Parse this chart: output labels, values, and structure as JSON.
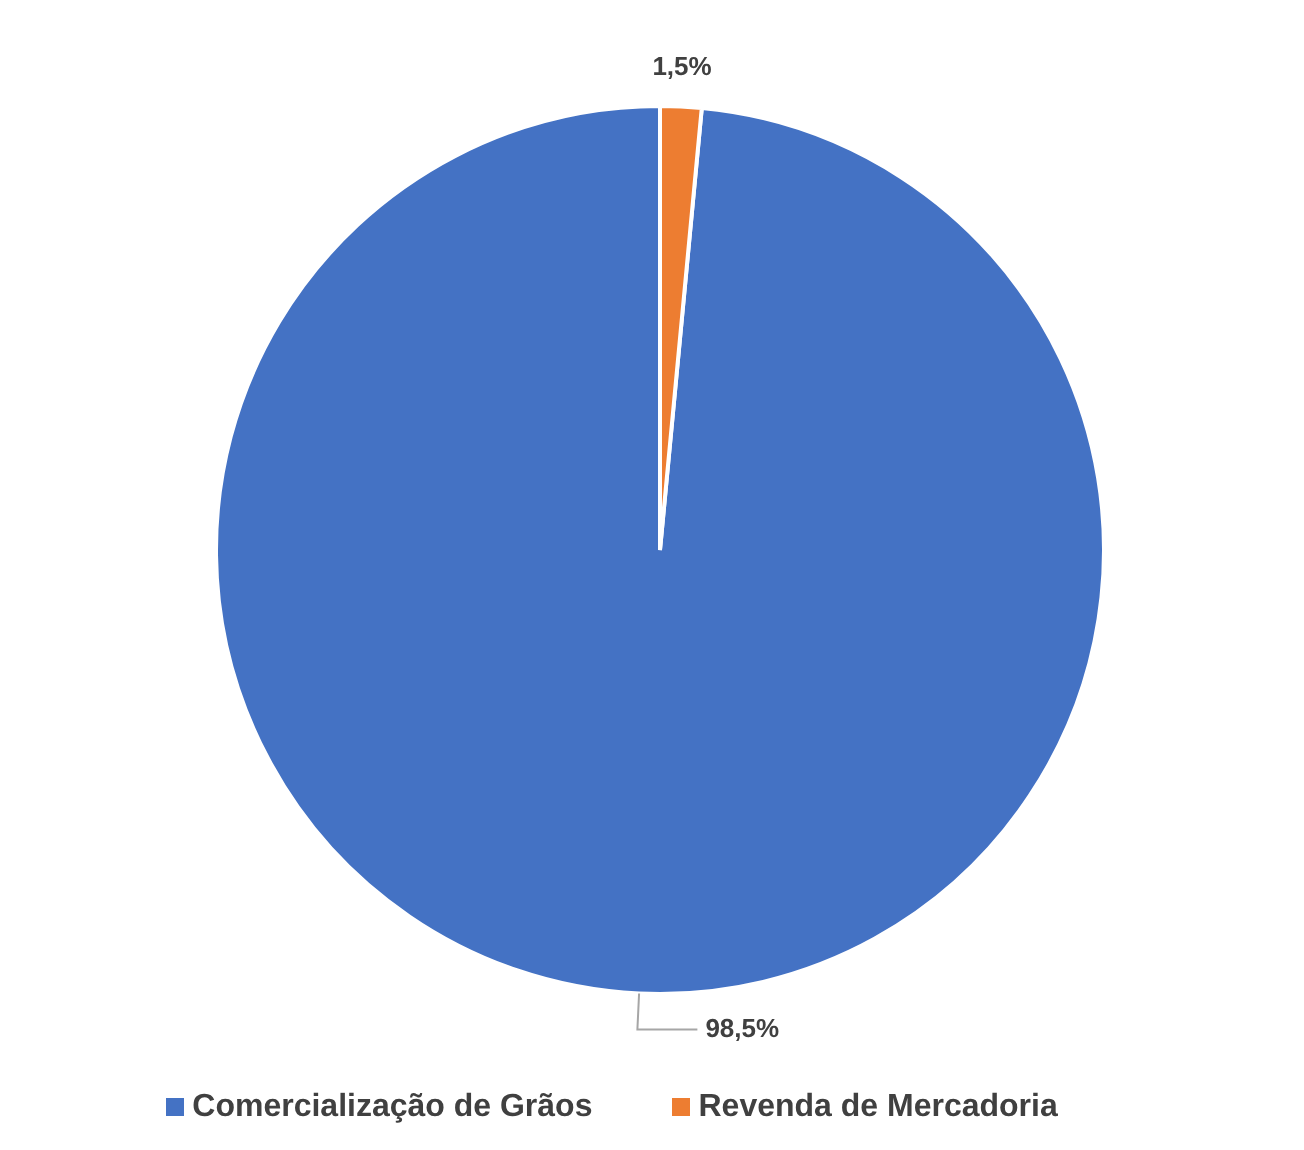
{
  "chart_data": {
    "type": "pie",
    "categories": [
      "Comercialização de Grãos",
      "Revenda de Mercadoria"
    ],
    "values": [
      98.5,
      1.5
    ],
    "colors": [
      "#4472c4",
      "#ed7d31"
    ],
    "value_labels": [
      "98,5%",
      "1,5%"
    ],
    "legend": "bottom"
  }
}
